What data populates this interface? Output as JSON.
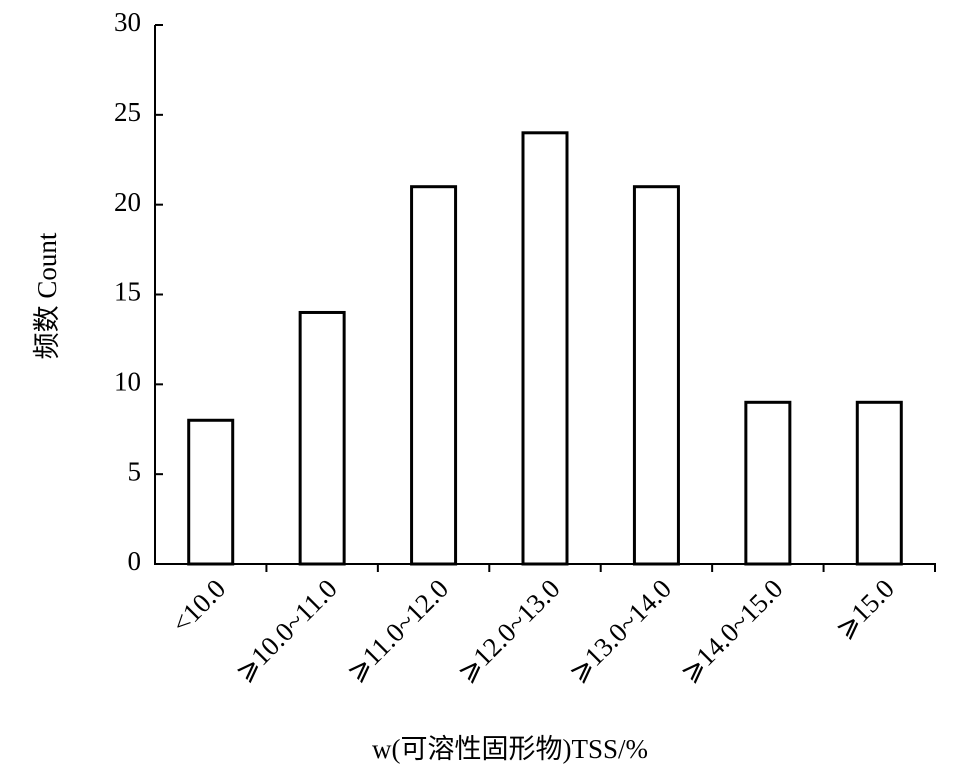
{
  "chart_data": {
    "type": "bar",
    "x_label": "w(可溶性固形物)TSS/%",
    "y_label": "频数 Count",
    "categories": [
      "<10.0",
      "⩾10.0~11.0",
      "⩾11.0~12.0",
      "⩾12.0~13.0",
      "⩾13.0~14.0",
      "⩾14.0~15.0",
      "⩾15.0"
    ],
    "values": [
      8,
      14,
      21,
      24,
      21,
      9,
      9
    ],
    "color": "#ffffff",
    "edge_color": "#000000",
    "ylim": [
      0,
      30
    ],
    "yticks": [
      0,
      5,
      10,
      15,
      20,
      25,
      30
    ],
    "grid": false
  }
}
